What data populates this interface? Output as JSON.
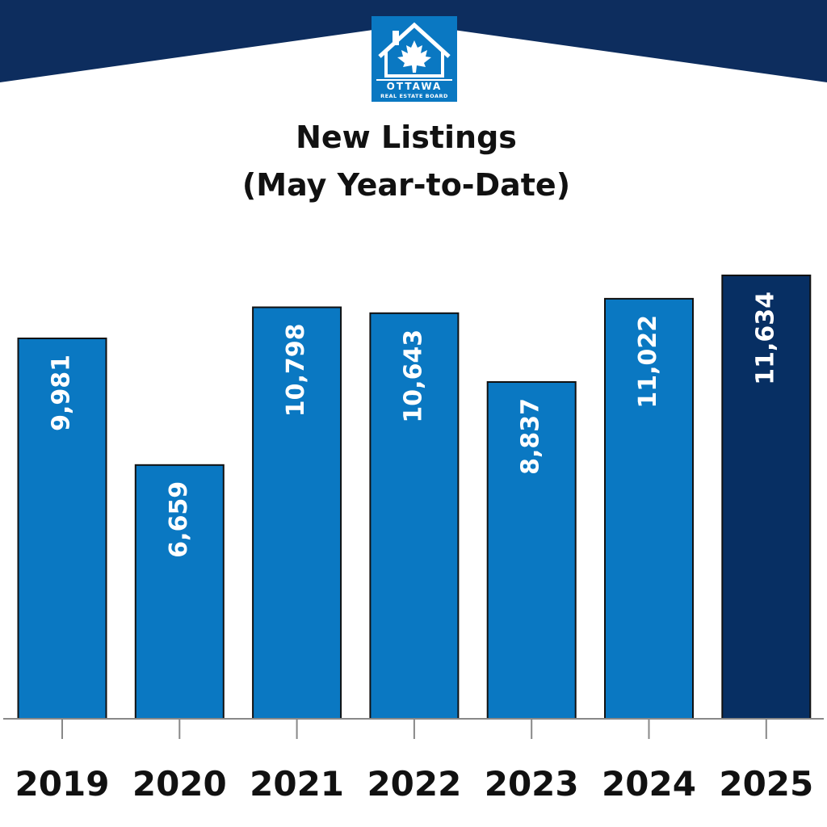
{
  "brand": {
    "logo_main": "OTTAWA",
    "logo_sub": "REAL ESTATE BOARD",
    "colors": {
      "header_navy": "#0d2d5e",
      "logo_blue": "#0a78c2",
      "bar_blue": "#0a78c2",
      "bar_highlight": "#072f63",
      "axis": "#888888"
    }
  },
  "chart_data": {
    "type": "bar",
    "title": "New Listings",
    "subtitle": "(May Year-to-Date)",
    "categories": [
      "2019",
      "2020",
      "2021",
      "2022",
      "2023",
      "2024",
      "2025"
    ],
    "values": [
      9981,
      6659,
      10798,
      10643,
      8837,
      11022,
      11634
    ],
    "value_labels": [
      "9,981",
      "6,659",
      "10,798",
      "10,643",
      "8,837",
      "11,022",
      "11,634"
    ],
    "highlight_category": "2025",
    "ylim": [
      0,
      11634
    ],
    "grid": false,
    "legend": "none"
  }
}
